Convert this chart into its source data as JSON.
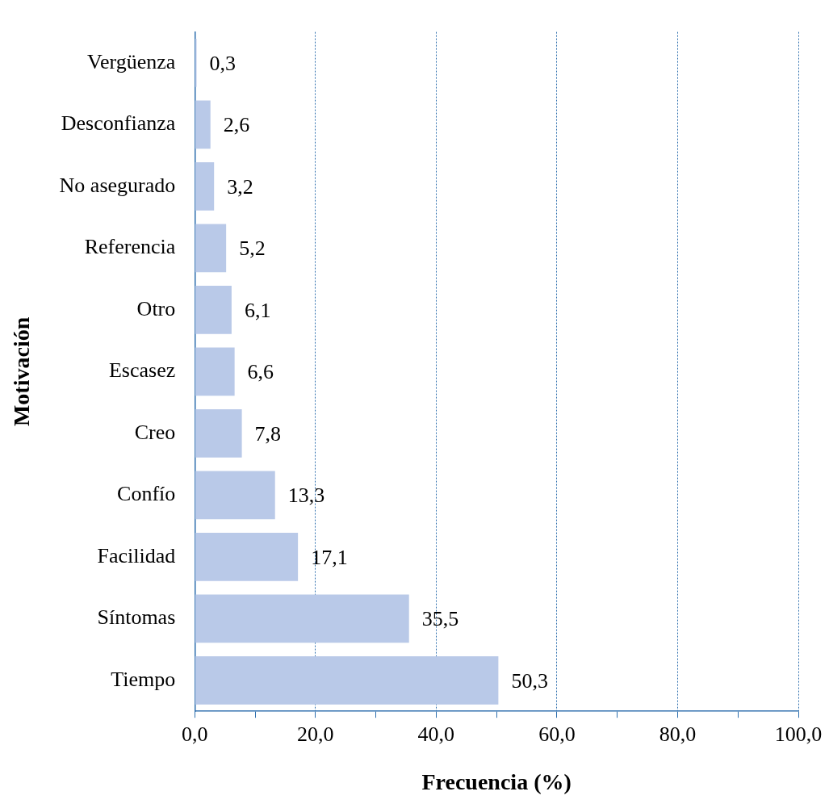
{
  "chart_data": {
    "type": "bar",
    "orientation": "horizontal",
    "xlabel": "Frecuencia (%)",
    "ylabel": "Motivación",
    "categories": [
      "Vergüenza",
      "Desconfianza",
      "No asegurado",
      "Referencia",
      "Otro",
      "Escasez",
      "Creo",
      "Confío",
      "Facilidad",
      "Síntomas",
      "Tiempo"
    ],
    "values": [
      0.3,
      2.6,
      3.2,
      5.2,
      6.1,
      6.6,
      7.8,
      13.3,
      17.1,
      35.5,
      50.3
    ],
    "value_labels": [
      "0,3",
      "2,6",
      "3,2",
      "5,2",
      "6,1",
      "6,6",
      "7,8",
      "13,3",
      "17,1",
      "35,5",
      "50,3"
    ],
    "color": "#b9c9e8",
    "xlim": [
      0,
      100
    ],
    "xticks": [
      {
        "value": 0,
        "label": "0,0"
      },
      {
        "value": 10,
        "label": null
      },
      {
        "value": 20,
        "label": "20,0"
      },
      {
        "value": 30,
        "label": null
      },
      {
        "value": 40,
        "label": "40,0"
      },
      {
        "value": 50,
        "label": null
      },
      {
        "value": 60,
        "label": "60,0"
      },
      {
        "value": 70,
        "label": null
      },
      {
        "value": 80,
        "label": "80,0"
      },
      {
        "value": 90,
        "label": null
      },
      {
        "value": 100,
        "label": "100,0"
      }
    ],
    "grid": "x",
    "legend": false
  }
}
